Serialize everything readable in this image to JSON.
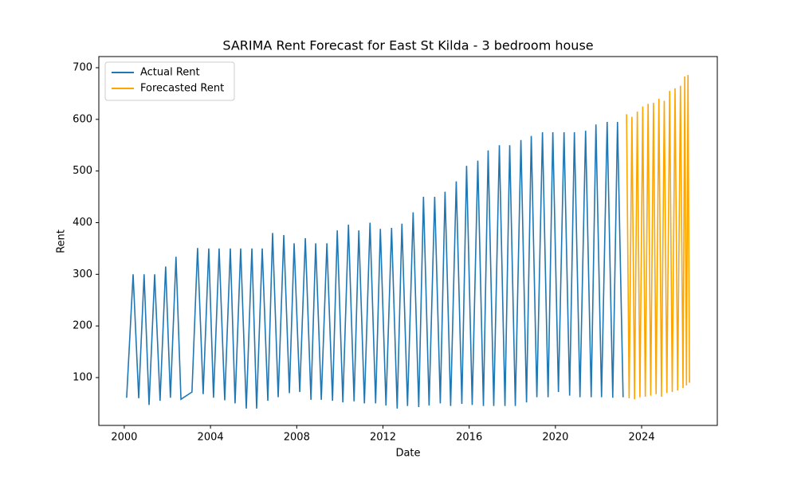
{
  "chart_data": {
    "type": "line",
    "title": "SARIMA Rent Forecast for East St Kilda - 3 bedroom house",
    "xlabel": "Date",
    "ylabel": "Rent",
    "xlim": [
      1998.82,
      2027.51
    ],
    "xticks": [
      2000,
      2004,
      2008,
      2012,
      2016,
      2020,
      2024
    ],
    "ylim": [
      7.4,
      721.6
    ],
    "yticks": [
      100,
      200,
      300,
      400,
      500,
      600,
      700
    ],
    "legend": "upper left",
    "series": [
      {
        "name": "Actual Rent",
        "color": "#1f77b4",
        "x": [
          2000.11,
          2000.41,
          2000.67,
          2000.92,
          2001.15,
          2001.41,
          2001.66,
          2001.92,
          2002.14,
          2002.4,
          2002.63,
          2003.14,
          2003.4,
          2003.66,
          2003.92,
          2004.14,
          2004.4,
          2004.66,
          2004.92,
          2005.14,
          2005.4,
          2005.66,
          2005.92,
          2006.14,
          2006.4,
          2006.66,
          2006.88,
          2007.14,
          2007.4,
          2007.66,
          2007.88,
          2008.14,
          2008.4,
          2008.66,
          2008.88,
          2009.14,
          2009.4,
          2009.66,
          2009.88,
          2010.14,
          2010.4,
          2010.66,
          2010.88,
          2011.14,
          2011.4,
          2011.66,
          2011.88,
          2012.14,
          2012.4,
          2012.66,
          2012.88,
          2013.14,
          2013.4,
          2013.66,
          2013.88,
          2014.14,
          2014.4,
          2014.66,
          2014.88,
          2015.14,
          2015.4,
          2015.66,
          2015.88,
          2016.14,
          2016.4,
          2016.66,
          2016.88,
          2017.14,
          2017.4,
          2017.66,
          2017.88,
          2018.14,
          2018.4,
          2018.66,
          2018.88,
          2019.14,
          2019.4,
          2019.66,
          2019.88,
          2020.14,
          2020.4,
          2020.66,
          2020.88,
          2021.14,
          2021.4,
          2021.66,
          2021.88,
          2022.14,
          2022.4,
          2022.66,
          2022.88,
          2023.14
        ],
        "values": [
          61,
          300,
          60,
          300,
          47,
          300,
          55,
          315,
          61,
          334,
          58,
          72,
          351,
          68,
          350,
          61,
          350,
          56,
          350,
          50,
          350,
          40,
          350,
          40,
          350,
          55,
          380,
          62,
          376,
          70,
          360,
          72,
          370,
          57,
          360,
          57,
          360,
          55,
          385,
          52,
          396,
          54,
          385,
          50,
          400,
          50,
          388,
          46,
          390,
          40,
          398,
          45,
          420,
          43,
          450,
          46,
          450,
          50,
          460,
          45,
          480,
          49,
          510,
          47,
          520,
          45,
          540,
          45,
          550,
          45,
          550,
          45,
          560,
          52,
          568,
          62,
          575,
          62,
          575,
          72,
          575,
          65,
          575,
          62,
          578,
          62,
          590,
          62,
          595,
          61,
          595,
          62
        ]
      },
      {
        "name": "Forecasted Rent",
        "color": "#ffa500",
        "x": [
          2023.3,
          2023.42,
          2023.55,
          2023.67,
          2023.8,
          2023.92,
          2024.05,
          2024.17,
          2024.3,
          2024.42,
          2024.55,
          2024.67,
          2024.8,
          2024.92,
          2025.05,
          2025.17,
          2025.3,
          2025.42,
          2025.55,
          2025.67,
          2025.8,
          2025.92,
          2026.0,
          2026.08,
          2026.15,
          2026.22
        ],
        "values": [
          610,
          60,
          605,
          58,
          615,
          62,
          625,
          63,
          630,
          65,
          632,
          68,
          640,
          63,
          636,
          70,
          655,
          72,
          660,
          75,
          665,
          80,
          683,
          85,
          686,
          90
        ]
      }
    ]
  }
}
